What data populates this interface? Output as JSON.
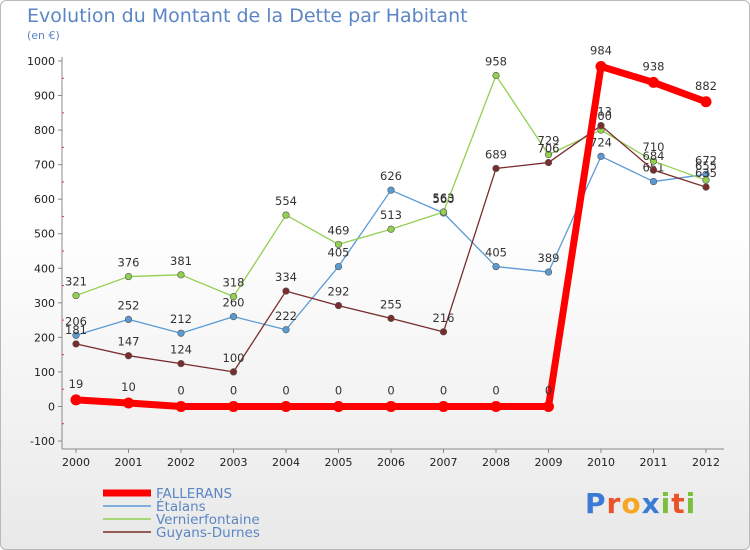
{
  "header": {
    "title": "Evolution du Montant de la Dette par Habitant",
    "subtitle": "(en €)"
  },
  "logo": {
    "text": "Proxiti"
  },
  "chart_data": {
    "type": "line",
    "title": "Evolution du Montant de la Dette par Habitant",
    "ylabel": "(en €)",
    "xlabel": "",
    "ylim": [
      -100,
      1000
    ],
    "yticks": [
      -100,
      0,
      100,
      200,
      300,
      400,
      500,
      600,
      700,
      800,
      900,
      1000
    ],
    "grid": false,
    "legend_position": "bottom-left",
    "x": [
      "2000",
      "2001",
      "2002",
      "2003",
      "2004",
      "2005",
      "2006",
      "2007",
      "2008",
      "2009",
      "2010",
      "2011",
      "2012"
    ],
    "series": [
      {
        "name": "FALLERANS",
        "color": "#ff0000",
        "values": [
          19,
          10,
          0,
          0,
          0,
          0,
          0,
          0,
          0,
          0,
          984,
          938,
          882
        ]
      },
      {
        "name": "Étalans",
        "color": "#5b9bd5",
        "values": [
          206,
          252,
          212,
          260,
          222,
          405,
          626,
          560,
          405,
          389,
          724,
          651,
          672
        ]
      },
      {
        "name": "Vernierfontaine",
        "color": "#92d050",
        "values": [
          321,
          376,
          381,
          318,
          554,
          469,
          513,
          563,
          958,
          729,
          800,
          710,
          655
        ]
      },
      {
        "name": "Guyans-Durnes",
        "color": "#7b2c2c",
        "values": [
          181,
          147,
          124,
          100,
          334,
          292,
          255,
          216,
          689,
          706,
          813,
          684,
          635
        ]
      }
    ]
  }
}
